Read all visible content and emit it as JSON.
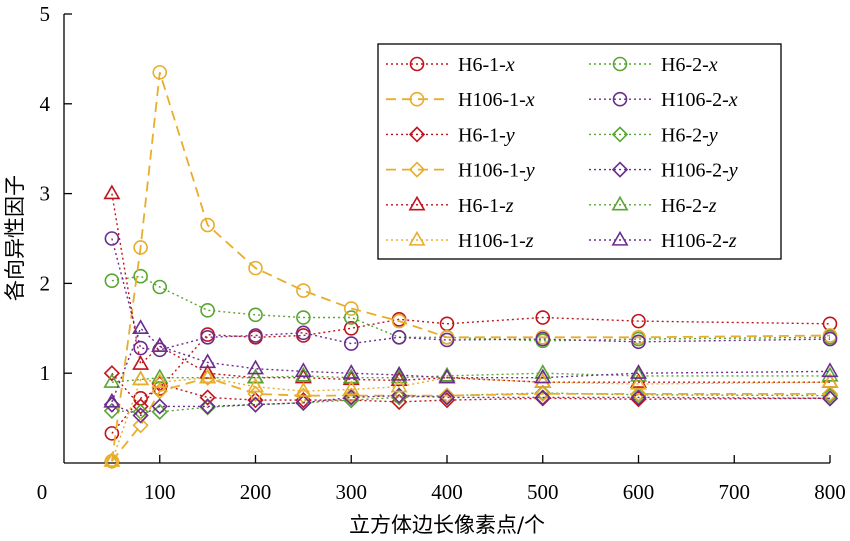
{
  "chart_data": {
    "type": "line",
    "xlabel": "立方体边长像素点/个",
    "ylabel": "各向异性因子",
    "xlim": [
      0,
      800
    ],
    "ylim": [
      0,
      5
    ],
    "x_ticks": [
      0,
      100,
      200,
      300,
      400,
      500,
      600,
      700,
      800
    ],
    "y_ticks": [
      1,
      2,
      3,
      4,
      5
    ],
    "legend_position": "top-right",
    "grid": false,
    "x": [
      50,
      80,
      100,
      150,
      200,
      250,
      300,
      350,
      400,
      500,
      600,
      800
    ],
    "series": [
      {
        "name_base": "H6-1-",
        "name_axis": "x",
        "color": "#c0141c",
        "dash": "dotted",
        "marker": "circle",
        "values": [
          0.33,
          0.72,
          0.83,
          1.43,
          1.4,
          1.42,
          1.5,
          1.6,
          1.55,
          1.62,
          1.58,
          1.55
        ]
      },
      {
        "name_base": "H6-2-",
        "name_axis": "x",
        "color": "#58a632",
        "dash": "dotted",
        "marker": "circle",
        "values": [
          2.03,
          2.08,
          1.96,
          1.7,
          1.65,
          1.62,
          1.62,
          1.4,
          1.4,
          1.36,
          1.38,
          1.4
        ]
      },
      {
        "name_base": "H106-1-",
        "name_axis": "x",
        "color": "#e8ad2b",
        "dash": "dashed",
        "marker": "circle",
        "values": [
          0.02,
          2.4,
          4.35,
          2.65,
          2.17,
          1.92,
          1.72,
          1.58,
          1.4,
          1.4,
          1.4,
          1.42
        ]
      },
      {
        "name_base": "H106-2-",
        "name_axis": "x",
        "color": "#6a2d8f",
        "dash": "dotted",
        "marker": "circle",
        "values": [
          2.5,
          1.28,
          1.26,
          1.4,
          1.42,
          1.45,
          1.33,
          1.4,
          1.37,
          1.38,
          1.35,
          1.38
        ]
      },
      {
        "name_base": "H6-1-",
        "name_axis": "y",
        "color": "#c0141c",
        "dash": "dotted",
        "marker": "diamond",
        "values": [
          1.0,
          0.63,
          0.88,
          0.73,
          0.7,
          0.7,
          0.7,
          0.68,
          0.7,
          0.72,
          0.71,
          0.72
        ]
      },
      {
        "name_base": "H6-2-",
        "name_axis": "y",
        "color": "#58a632",
        "dash": "dotted",
        "marker": "diamond",
        "values": [
          0.58,
          0.57,
          0.57,
          0.62,
          0.65,
          0.67,
          0.7,
          0.73,
          0.75,
          0.78,
          0.76,
          0.75
        ]
      },
      {
        "name_base": "H106-1-",
        "name_axis": "y",
        "color": "#e8ad2b",
        "dash": "dashed",
        "marker": "diamond",
        "values": [
          0.02,
          0.42,
          0.8,
          0.95,
          0.77,
          0.75,
          0.75,
          0.75,
          0.75,
          0.77,
          0.77,
          0.77
        ]
      },
      {
        "name_base": "H106-2-",
        "name_axis": "y",
        "color": "#6a2d8f",
        "dash": "dotted",
        "marker": "diamond",
        "values": [
          0.65,
          0.53,
          0.63,
          0.63,
          0.65,
          0.67,
          0.73,
          0.75,
          0.73,
          0.73,
          0.73,
          0.72
        ]
      },
      {
        "name_base": "H6-1-",
        "name_axis": "z",
        "color": "#c0141c",
        "dash": "dotted",
        "marker": "triangle",
        "values": [
          3.0,
          1.1,
          1.3,
          1.0,
          0.95,
          0.95,
          0.93,
          0.92,
          0.95,
          0.9,
          0.9,
          0.9
        ]
      },
      {
        "name_base": "H6-2-",
        "name_axis": "z",
        "color": "#58a632",
        "dash": "dotted",
        "marker": "triangle",
        "values": [
          0.9,
          0.93,
          0.95,
          0.95,
          0.95,
          0.97,
          0.95,
          0.95,
          0.97,
          1.0,
          0.97,
          0.97
        ]
      },
      {
        "name_base": "H106-1-",
        "name_axis": "z",
        "color": "#e8ad2b",
        "dash": "dotted",
        "marker": "triangle",
        "values": [
          0.02,
          0.93,
          0.9,
          0.95,
          0.85,
          0.8,
          0.82,
          0.85,
          0.95,
          0.9,
          0.88,
          0.9
        ]
      },
      {
        "name_base": "H106-2-",
        "name_axis": "z",
        "color": "#6a2d8f",
        "dash": "dotted",
        "marker": "triangle",
        "values": [
          0.68,
          1.5,
          1.3,
          1.12,
          1.05,
          1.02,
          1.0,
          0.98,
          0.95,
          0.95,
          1.0,
          1.02
        ]
      }
    ],
    "legend_order": [
      0,
      1,
      2,
      3,
      4,
      5,
      6,
      7,
      8,
      9,
      10,
      11
    ]
  }
}
